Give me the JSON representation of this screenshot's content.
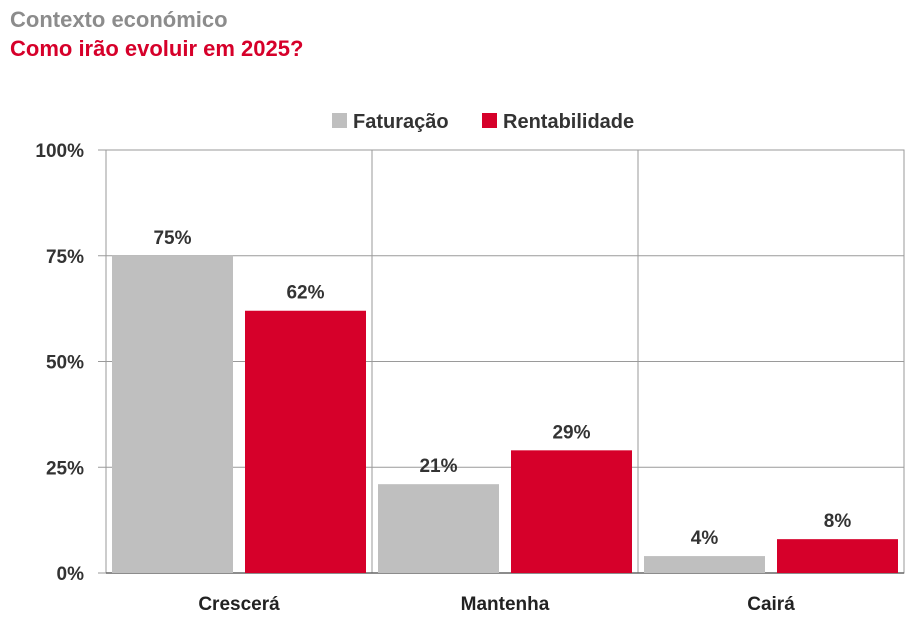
{
  "header": {
    "subtitle": "Contexto económico",
    "title": "Como irão evoluir em 2025?"
  },
  "colors": {
    "subtitle": "#8c8c8c",
    "title": "#d6002a",
    "faturacao": "#bfbfbf",
    "rentabilidade": "#d6002a"
  },
  "chart_data": {
    "type": "bar",
    "categories": [
      "Crescerá",
      "Mantenha",
      "Cairá"
    ],
    "series": [
      {
        "name": "Faturação",
        "values": [
          75,
          21,
          4
        ],
        "labels": [
          "75%",
          "21%",
          "4%"
        ]
      },
      {
        "name": "Rentabilidade",
        "values": [
          62,
          29,
          8
        ],
        "labels": [
          "62%",
          "29%",
          "8%"
        ]
      }
    ],
    "ylim": [
      0,
      100
    ],
    "yticks": [
      0,
      25,
      50,
      75,
      100
    ],
    "ytick_labels": [
      "0%",
      "25%",
      "50%",
      "75%",
      "100%"
    ],
    "grid": true,
    "legend_position": "top-center"
  }
}
